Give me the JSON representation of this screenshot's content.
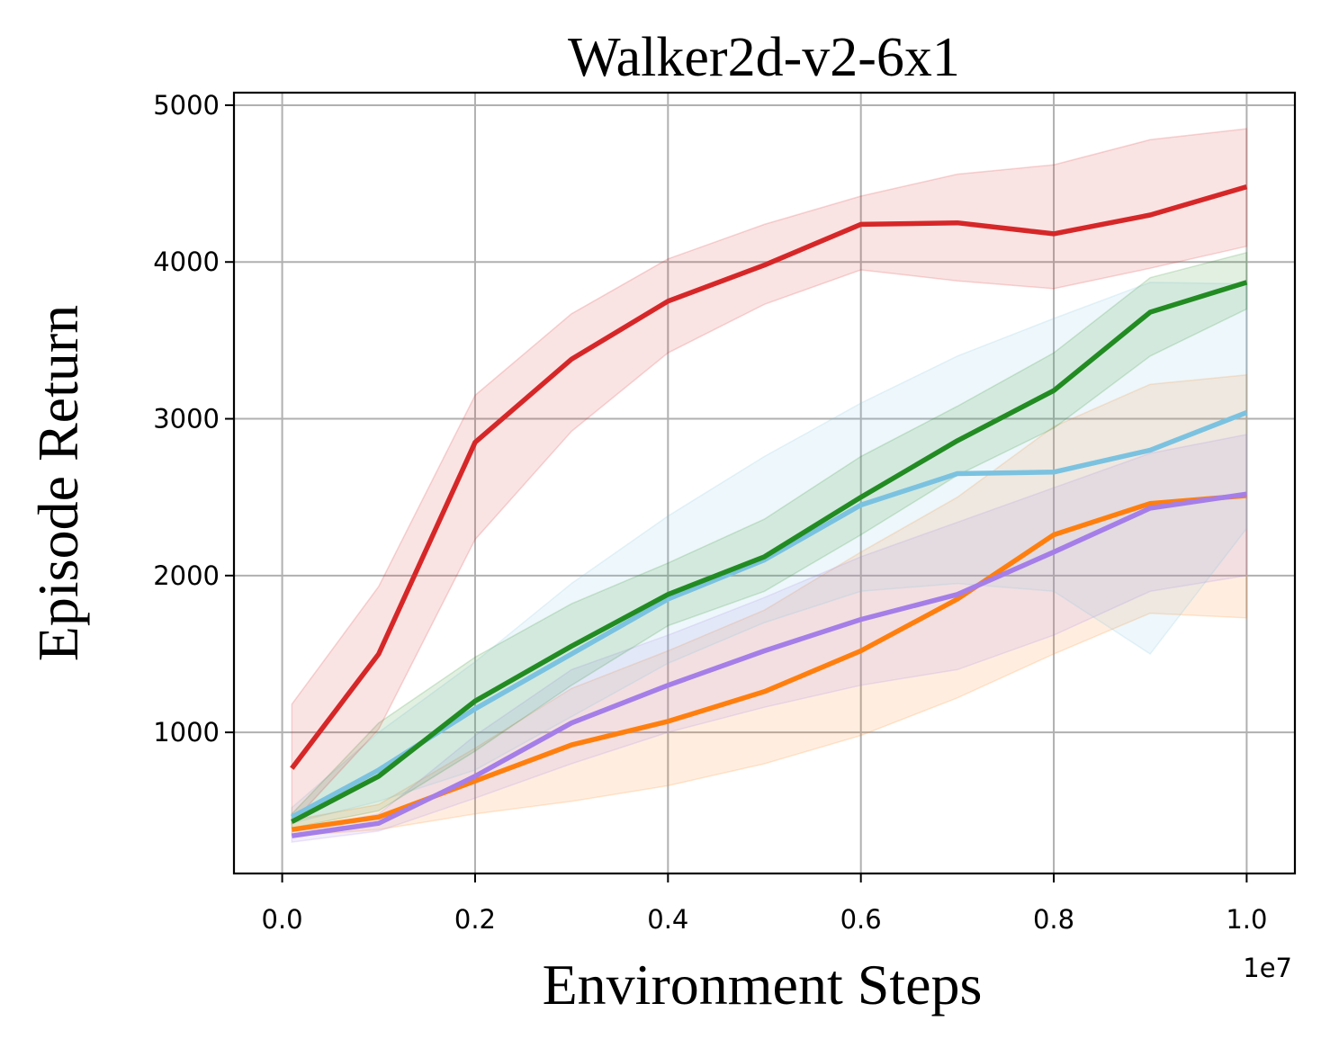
{
  "chart_data": {
    "type": "line",
    "title": "Walker2d-v2-6x1",
    "xlabel": "Environment Steps",
    "ylabel": "Episode Return",
    "x_offset_label": "1e7",
    "xlim": [
      -0.05,
      1.05
    ],
    "ylim": [
      100,
      5080
    ],
    "grid": true,
    "x_ticks": [
      0.0,
      0.2,
      0.4,
      0.6,
      0.8,
      1.0
    ],
    "x_tick_labels": [
      "0.0",
      "0.2",
      "0.4",
      "0.6",
      "0.8",
      "1.0"
    ],
    "y_ticks": [
      1000,
      2000,
      3000,
      4000,
      5000
    ],
    "y_tick_labels": [
      "1000",
      "2000",
      "3000",
      "4000",
      "5000"
    ],
    "x": [
      0.01,
      0.1,
      0.2,
      0.3,
      0.4,
      0.5,
      0.6,
      0.7,
      0.8,
      0.9,
      1.0
    ],
    "series": [
      {
        "name": "red",
        "color": "#d62728",
        "values": [
          770,
          1500,
          2850,
          3380,
          3750,
          3980,
          4240,
          4250,
          4180,
          4300,
          4480
        ],
        "lower": [
          420,
          1020,
          2230,
          2920,
          3420,
          3730,
          3950,
          3880,
          3830,
          3960,
          4100
        ],
        "upper": [
          1180,
          1930,
          3150,
          3670,
          4020,
          4240,
          4420,
          4560,
          4620,
          4780,
          4850
        ]
      },
      {
        "name": "green",
        "color": "#228b22",
        "values": [
          430,
          720,
          1200,
          1550,
          1880,
          2120,
          2500,
          2860,
          3180,
          3680,
          3870
        ],
        "lower": [
          390,
          500,
          880,
          1300,
          1680,
          1900,
          2260,
          2640,
          2940,
          3400,
          3700
        ],
        "upper": [
          480,
          1060,
          1480,
          1820,
          2080,
          2360,
          2760,
          3080,
          3420,
          3900,
          4060
        ]
      },
      {
        "name": "skyblue",
        "color": "#7bc2e0",
        "values": [
          460,
          760,
          1150,
          1500,
          1850,
          2100,
          2450,
          2650,
          2660,
          2800,
          3040
        ],
        "lower": [
          420,
          560,
          760,
          1100,
          1440,
          1700,
          1900,
          1950,
          1900,
          1500,
          2300
        ],
        "upper": [
          520,
          1000,
          1450,
          1950,
          2380,
          2760,
          3100,
          3400,
          3640,
          3870,
          3860
        ]
      },
      {
        "name": "orange",
        "color": "#ff7f0e",
        "values": [
          380,
          460,
          690,
          920,
          1070,
          1260,
          1520,
          1850,
          2260,
          2460,
          2510
        ],
        "lower": [
          340,
          380,
          480,
          560,
          660,
          800,
          980,
          1220,
          1500,
          1760,
          1730
        ],
        "upper": [
          440,
          540,
          900,
          1280,
          1520,
          1780,
          2150,
          2500,
          2950,
          3220,
          3280
        ]
      },
      {
        "name": "purple",
        "color": "#a57ee8",
        "values": [
          340,
          420,
          720,
          1060,
          1300,
          1520,
          1720,
          1880,
          2150,
          2430,
          2520
        ],
        "lower": [
          300,
          370,
          580,
          800,
          1000,
          1160,
          1300,
          1400,
          1620,
          1900,
          2000
        ],
        "upper": [
          380,
          480,
          980,
          1400,
          1620,
          1860,
          2120,
          2340,
          2560,
          2780,
          2900
        ]
      }
    ]
  }
}
